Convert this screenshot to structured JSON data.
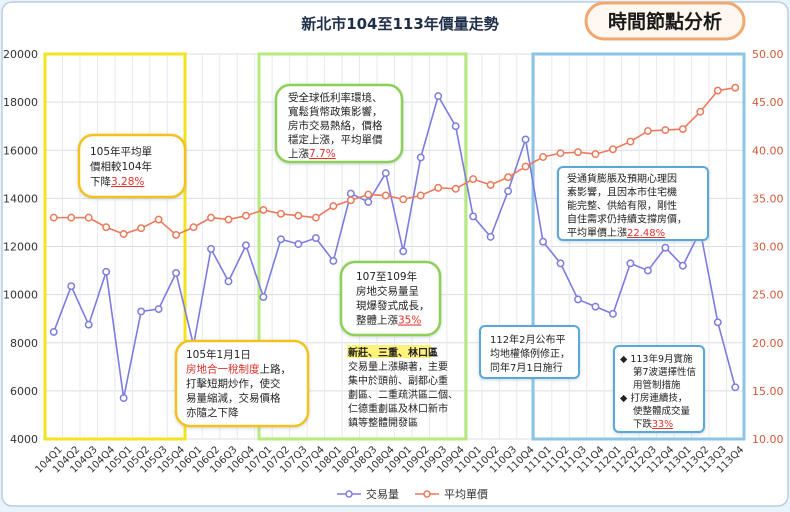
{
  "header": {
    "title": "新北市104至113年價量走勢",
    "badge": "時間節點分析"
  },
  "annotations": {
    "a105": {
      "lines": [
        "105年平均單",
        "價相較104年"
      ],
      "pre": "下降",
      "hl": "3.28%"
    },
    "a105_policy": {
      "line1": "105年1月1日",
      "hl_line": "房地合一稅制度",
      "hl_after": "上路，",
      "lines": [
        "打擊短期炒作，使交",
        "易量縮減，交易價格",
        "亦隨之下降"
      ]
    },
    "a107_low": {
      "lines": [
        "受全球低利率環境、",
        "寬鬆貨幣政策影響，",
        "房市交易熱絡，價格",
        "穩定上漲，平均單價"
      ],
      "pre": "上漲",
      "hl": "7.7%"
    },
    "a107_109": {
      "lines": [
        "107至109年",
        "房地交易量呈",
        "現爆發式成長，"
      ],
      "pre": "整體上漲",
      "hl": "35%"
    },
    "a_area": {
      "hl": "新莊、三重、林口區",
      "lines": [
        "交易量上漲顯著，主要",
        "集中於頭前、副都心重",
        "劃區、二重疏洪區二個、",
        "仁德重劃區及林口新市",
        "鎮等整體開發區"
      ]
    },
    "a112": {
      "lines": [
        "112年2月公布平",
        "均地權條例修正，",
        "同年7月1日施行"
      ]
    },
    "a_expect": {
      "lines": [
        "受通貨膨脹及預期心理因",
        "素影響，且因本市住宅機",
        "能完整、供給有限，剛性",
        "自住需求仍持續支撐房價，"
      ],
      "pre": "平均單價上漲",
      "hl": "22.48%"
    },
    "a113": {
      "bullet1": [
        "113年9月實施",
        "第7波選擇性信",
        "用管制措施"
      ],
      "bullet2": [
        "打房連續技，",
        "使整體成交量"
      ],
      "pre": "下跌",
      "hl": "33%"
    }
  },
  "colors": {
    "volume": "#7c7ce0",
    "price": "#ea7a5a",
    "highlight": "#e0302a",
    "yellow_box": "#f3e31c",
    "green_box": "#b6ea7c",
    "blue_box": "#8cc4e6"
  },
  "chart_data": {
    "type": "line",
    "title": "新北市104至113年價量走勢",
    "x": [
      "104Q1",
      "104Q2",
      "104Q3",
      "104Q4",
      "105Q1",
      "105Q2",
      "105Q3",
      "105Q4",
      "106Q1",
      "106Q2",
      "106Q3",
      "106Q4",
      "107Q1",
      "107Q2",
      "107Q3",
      "107Q4",
      "108Q1",
      "108Q2",
      "108Q3",
      "108Q4",
      "109Q1",
      "109Q2",
      "109Q3",
      "109Q4",
      "110Q1",
      "110Q2",
      "110Q3",
      "110Q4",
      "111Q1",
      "111Q2",
      "111Q3",
      "111Q4",
      "112Q1",
      "112Q2",
      "112Q3",
      "112Q4",
      "113Q1",
      "113Q2",
      "113Q3",
      "113Q4"
    ],
    "series": [
      {
        "name": "交易量",
        "axis": "left",
        "values": [
          8450,
          10350,
          8750,
          10950,
          5700,
          9300,
          9400,
          10900,
          7900,
          11900,
          10550,
          12050,
          9900,
          12300,
          12100,
          12350,
          11400,
          14200,
          13850,
          15050,
          11800,
          15700,
          18250,
          17000,
          13250,
          12400,
          14300,
          16450,
          12200,
          11300,
          9800,
          9500,
          9200,
          11300,
          11000,
          11950,
          11200,
          12650,
          8850,
          6150
        ]
      },
      {
        "name": "平均單價",
        "axis": "right",
        "values": [
          33.0,
          33.0,
          33.0,
          32.0,
          31.3,
          31.9,
          32.8,
          31.2,
          32.0,
          33.0,
          32.8,
          33.2,
          33.8,
          33.4,
          33.2,
          33.0,
          34.2,
          34.8,
          35.4,
          35.3,
          34.9,
          35.3,
          36.1,
          36.0,
          37.0,
          36.4,
          37.2,
          38.3,
          39.3,
          39.7,
          39.8,
          39.6,
          40.1,
          40.9,
          42.0,
          42.1,
          42.2,
          44.0,
          46.2,
          46.5
        ]
      }
    ],
    "left_axis": {
      "min": 4000,
      "max": 20000,
      "step": 2000
    },
    "right_axis": {
      "min": 10.0,
      "max": 50.0,
      "step": 5.0
    },
    "legend": [
      "交易量",
      "平均單價"
    ],
    "legend_position": "bottom",
    "grid": true
  }
}
